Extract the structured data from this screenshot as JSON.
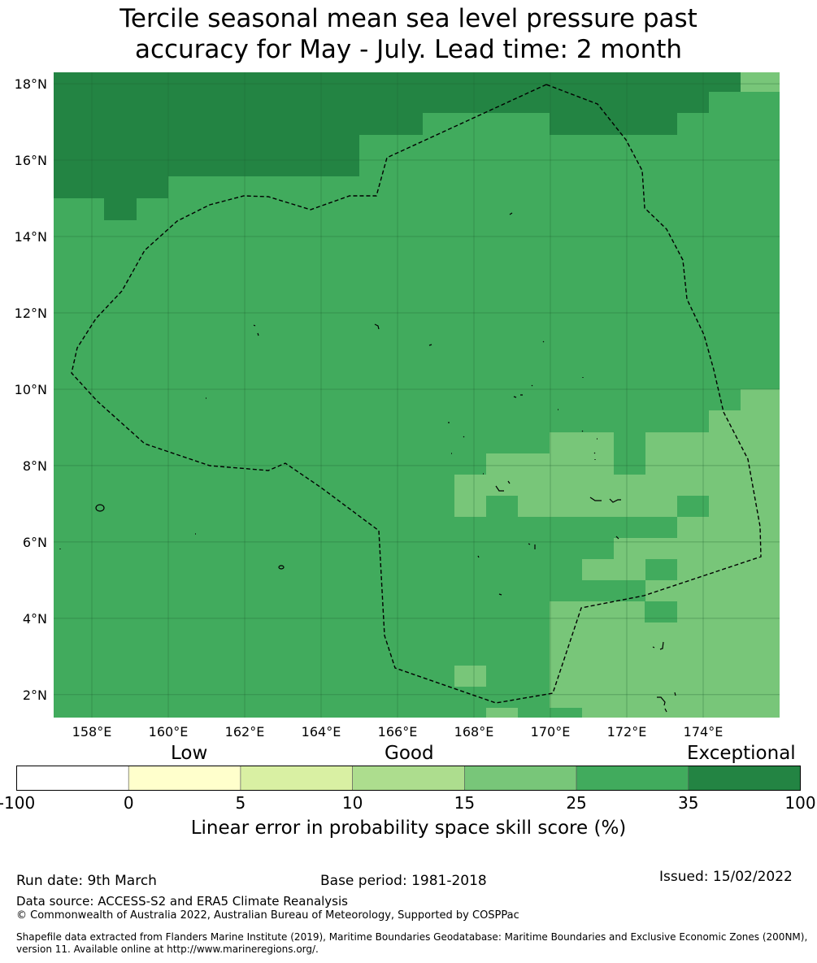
{
  "title": {
    "line1": "Tercile seasonal mean sea level pressure past",
    "line2": "accuracy for May - July. Lead time: 2 month"
  },
  "map": {
    "lon_range": [
      157,
      176
    ],
    "lat_range": [
      1.4,
      18.3
    ],
    "lat_ticks": [
      "18°N",
      "16°N",
      "14°N",
      "12°N",
      "10°N",
      "8°N",
      "6°N",
      "4°N",
      "2°N"
    ],
    "lon_ticks": [
      "158°E",
      "160°E",
      "162°E",
      "164°E",
      "166°E",
      "168°E",
      "170°E",
      "172°E",
      "174°E"
    ],
    "gridlines": true,
    "colors": {
      "exceptional_dark": "#238443",
      "good_25_35": "#41ab5d",
      "good_15_25": "#78c679"
    }
  },
  "colorbar": {
    "category_labels": {
      "low": "Low",
      "good": "Good",
      "exceptional": "Exceptional"
    },
    "ticks": [
      "-100",
      "0",
      "5",
      "10",
      "15",
      "25",
      "35",
      "100"
    ],
    "colors": [
      "#ffffff",
      "#ffffcc",
      "#d9f0a3",
      "#addd8e",
      "#78c679",
      "#41ab5d",
      "#238443"
    ],
    "label": "Linear error in probability space skill score (%)"
  },
  "footer": {
    "run_date": "Run date: 9th March",
    "base_period": "Base period: 1981-2018",
    "issued": "Issued: 15/02/2022",
    "data_source": "Data source: ACCESS-S2 and ERA5 Climate Reanalysis",
    "copyright": "© Commonwealth of Australia 2022, Australian Bureau of Meteorology, Supported by COSPPac",
    "shapefile": "Shapefile data extracted from Flanders Marine Institute (2019), Maritime Boundaries Geodatabase: Maritime Boundaries and Exclusive Economic Zones (200NM), version 11. Available online at http://www.marineregions.org/."
  }
}
